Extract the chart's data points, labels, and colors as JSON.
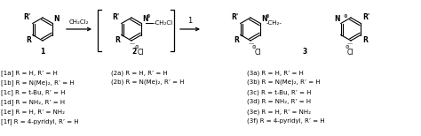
{
  "bg_color": "#ffffff",
  "text_color": "#000000",
  "fig_width": 4.74,
  "fig_height": 1.54,
  "dpi": 100,
  "labels_left": [
    "[1a] R = H, R’ = H",
    "[1b] R = N(Me)₂, R’ = H",
    "[1c] R = t-Bu, R’ = H",
    "[1d] R = NH₂, R’ = H",
    "[1e] R = H, R’ = NH₂",
    "[1f] R = 4-pyridyl, R’ = H"
  ],
  "labels_mid": [
    "(2a) R = H, R’ = H",
    "(2b) R = N(Me)₂, R’ = H"
  ],
  "labels_right": [
    "(3a) R = H, R’ = H",
    "(3b) R = N(Me)₂, R’ = H",
    "(3c) R = t-Bu, R’ = H",
    "(3d) R = NH₂, R’ = H",
    "(3e) R = H, R’ = NH₂",
    "(3f) R = 4-pyridyl, R’ = H"
  ],
  "arrow1_label": "CH₂Cl₂",
  "arrow2_label": "1",
  "font_size": 5.5,
  "label_font_size": 5.0
}
